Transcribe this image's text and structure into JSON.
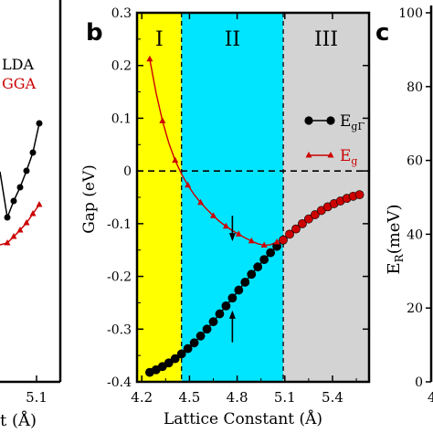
{
  "panel_labels": {
    "b": "b",
    "c": "c"
  },
  "panel_a": {
    "legend": [
      "LDA",
      "GGA"
    ],
    "x_tick": "5.1",
    "xlabel_fragment": "t (Å)"
  },
  "panel_c": {
    "ylabel_main": "E",
    "ylabel_sub": "R",
    "ylabel_unit": "(meV)",
    "y_ticks": [
      "100",
      "80",
      "60",
      "40",
      "20",
      "0"
    ],
    "x_tick_fragment": "4"
  },
  "colors": {
    "region_I": "#ffff00",
    "region_II": "#00e5ff",
    "region_III": "#d3d3d3",
    "egG": "#000000",
    "eg": "#cc0000",
    "lda": "#000000",
    "gga": "#cc0000"
  },
  "chart_data": {
    "type": "line",
    "xlabel": "Lattice Constant (Å)",
    "ylabel": "Gap (eV)",
    "xlim": [
      4.17,
      5.63
    ],
    "ylim": [
      -0.4,
      0.3
    ],
    "x_ticks": [
      "4.2",
      "4.5",
      "4.8",
      "5.1",
      "5.4"
    ],
    "y_ticks": [
      "0.3",
      "0.2",
      "0.1",
      "0",
      "-0.1",
      "-0.2",
      "-0.3",
      "-0.4"
    ],
    "regions": [
      {
        "label": "I",
        "from": 4.17,
        "to": 4.45
      },
      {
        "label": "II",
        "from": 4.45,
        "to": 5.09
      },
      {
        "label": "III",
        "from": 5.09,
        "to": 5.63
      }
    ],
    "zero_line": 0,
    "series": [
      {
        "name": "E",
        "subscript": "gΓ",
        "marker": "circle",
        "x": [
          4.25,
          4.29,
          4.33,
          4.37,
          4.41,
          4.45,
          4.49,
          4.53,
          4.57,
          4.61,
          4.65,
          4.69,
          4.73,
          4.77,
          4.81,
          4.85,
          4.89,
          4.93,
          4.97,
          5.01,
          5.05,
          5.09,
          5.13,
          5.17,
          5.21,
          5.25,
          5.29,
          5.33,
          5.37,
          5.41,
          5.45,
          5.49,
          5.53,
          5.57
        ],
        "values": [
          -0.382,
          -0.377,
          -0.371,
          -0.364,
          -0.356,
          -0.347,
          -0.337,
          -0.326,
          -0.313,
          -0.3,
          -0.286,
          -0.271,
          -0.256,
          -0.241,
          -0.226,
          -0.211,
          -0.196,
          -0.182,
          -0.168,
          -0.155,
          -0.143,
          -0.131,
          -0.12,
          -0.11,
          -0.1,
          -0.091,
          -0.083,
          -0.075,
          -0.068,
          -0.062,
          -0.057,
          -0.052,
          -0.048,
          -0.045
        ]
      },
      {
        "name": "E",
        "subscript": "g",
        "marker": "triangle",
        "x": [
          4.25,
          4.29,
          4.33,
          4.37,
          4.41,
          4.45,
          4.49,
          4.53,
          4.57,
          4.61,
          4.65,
          4.69,
          4.73,
          4.77,
          4.81,
          4.85,
          4.89,
          4.93,
          4.97,
          5.01,
          5.05,
          5.09,
          5.13,
          5.17,
          5.21,
          5.25,
          5.29,
          5.33,
          5.37,
          5.41,
          5.45,
          5.49,
          5.53,
          5.57
        ],
        "values": [
          0.212,
          0.148,
          0.095,
          0.053,
          0.02,
          -0.006,
          -0.027,
          -0.045,
          -0.06,
          -0.073,
          -0.085,
          -0.096,
          -0.105,
          -0.113,
          -0.12,
          -0.127,
          -0.133,
          -0.138,
          -0.141,
          -0.14,
          -0.135,
          -0.128,
          -0.12,
          -0.11,
          -0.1,
          -0.091,
          -0.083,
          -0.075,
          -0.068,
          -0.062,
          -0.057,
          -0.052,
          -0.048,
          -0.045
        ]
      }
    ],
    "arrows": [
      {
        "direction": "down",
        "x": 4.77,
        "y_from": -0.085,
        "y_to": -0.13
      },
      {
        "direction": "up",
        "x": 4.77,
        "y_from": -0.325,
        "y_to": -0.268
      }
    ]
  }
}
